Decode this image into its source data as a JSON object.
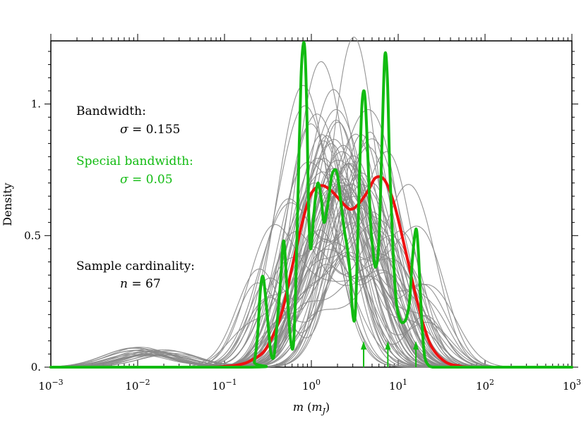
{
  "chart_data": {
    "type": "line",
    "title": "",
    "xlabel": "m (m_J)",
    "xlabel_main": "m",
    "xlabel_unit": "m",
    "xlabel_unit_sub": "J",
    "ylabel": "Density",
    "xscale": "log",
    "xlim": [
      0.001,
      1000
    ],
    "ylim": [
      0,
      1.24
    ],
    "grid": false,
    "x_tick_labels": [
      {
        "value": 0.001,
        "base": "10",
        "exp": "−3"
      },
      {
        "value": 0.01,
        "base": "10",
        "exp": "−2"
      },
      {
        "value": 0.1,
        "base": "10",
        "exp": "−1"
      },
      {
        "value": 1,
        "base": "10",
        "exp": "0"
      },
      {
        "value": 10,
        "base": "10",
        "exp": "1"
      },
      {
        "value": 100,
        "base": "10",
        "exp": "2"
      },
      {
        "value": 1000,
        "base": "10",
        "exp": "3"
      }
    ],
    "y_ticks": [
      {
        "value": 0,
        "label": "0."
      },
      {
        "value": 0.5,
        "label": "0.5"
      },
      {
        "value": 1,
        "label": "1."
      }
    ],
    "series": [
      {
        "role": "kde",
        "color": "#ee1111",
        "x": [
          0.001,
          0.05,
          0.1,
          0.15,
          0.2,
          0.3,
          0.45,
          0.6,
          0.8,
          1.0,
          1.3,
          1.7,
          2.2,
          2.8,
          3.5,
          4.5,
          5.5,
          7,
          9,
          12,
          16,
          20,
          25,
          35,
          50,
          80,
          1000
        ],
        "y": [
          0,
          0,
          0.003,
          0.01,
          0.025,
          0.07,
          0.2,
          0.38,
          0.56,
          0.66,
          0.69,
          0.67,
          0.63,
          0.6,
          0.62,
          0.67,
          0.72,
          0.71,
          0.62,
          0.45,
          0.27,
          0.15,
          0.07,
          0.02,
          0.005,
          0,
          0
        ]
      },
      {
        "role": "kde-special",
        "color": "#11bb11",
        "x": [
          0.001,
          0.2,
          0.22,
          0.24,
          0.26,
          0.28,
          0.31,
          0.34,
          0.37,
          0.4,
          0.44,
          0.48,
          0.52,
          0.57,
          0.62,
          0.66,
          0.71,
          0.76,
          0.81,
          0.85,
          0.89,
          0.93,
          0.98,
          1.05,
          1.12,
          1.2,
          1.3,
          1.4,
          1.55,
          1.7,
          1.85,
          2.0,
          2.2,
          2.4,
          2.6,
          2.8,
          3.0,
          3.2,
          3.4,
          3.6,
          3.8,
          4.0,
          4.2,
          4.5,
          4.8,
          5.1,
          5.5,
          6.0,
          6.5,
          7.0,
          7.5,
          8.0,
          8.7,
          9.5,
          10.5,
          11.5,
          12.5,
          13.5,
          14.5,
          15.5,
          16.3,
          17.2,
          18.5,
          20,
          22,
          25,
          30,
          40,
          1000
        ],
        "y": [
          0,
          0,
          0.02,
          0.12,
          0.3,
          0.34,
          0.2,
          0.06,
          0.04,
          0.15,
          0.32,
          0.48,
          0.32,
          0.12,
          0.08,
          0.3,
          0.72,
          1.1,
          1.23,
          1.18,
          0.95,
          0.6,
          0.45,
          0.55,
          0.65,
          0.7,
          0.64,
          0.55,
          0.62,
          0.72,
          0.75,
          0.73,
          0.62,
          0.52,
          0.45,
          0.35,
          0.2,
          0.2,
          0.45,
          0.75,
          0.98,
          1.05,
          1.0,
          0.78,
          0.55,
          0.45,
          0.38,
          0.48,
          0.85,
          1.18,
          1.1,
          0.75,
          0.45,
          0.25,
          0.18,
          0.17,
          0.19,
          0.25,
          0.4,
          0.5,
          0.52,
          0.42,
          0.2,
          0.05,
          0.01,
          0,
          0,
          0,
          0
        ]
      }
    ],
    "bootstrap_curves": {
      "color": "#888888",
      "count": 67,
      "note_center_peak_x": 2.2
    },
    "markers": {
      "color": "#11bb11",
      "x": [
        4.0,
        7.6,
        16.0
      ]
    },
    "annotations": {
      "bandwidth_heading": "Bandwidth:",
      "bandwidth_symbol": "σ",
      "bandwidth_value": " = 0.155",
      "special_heading": "Special bandwidth:",
      "special_symbol": "σ",
      "special_value": " = 0.05",
      "sample_heading": "Sample cardinality:",
      "sample_symbol": "n",
      "sample_value": " = 67",
      "black": "#000000",
      "green": "#11bb11"
    }
  }
}
